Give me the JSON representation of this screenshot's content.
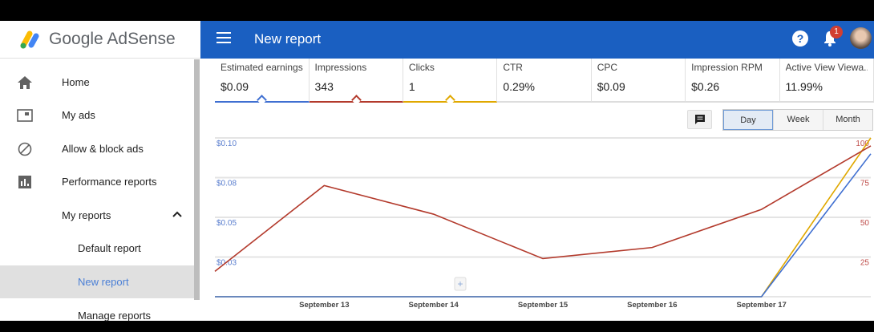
{
  "app": {
    "name": "Google AdSense"
  },
  "sidebar": {
    "items": [
      {
        "label": "Home",
        "icon": "home-icon"
      },
      {
        "label": "My ads",
        "icon": "ad-unit-icon"
      },
      {
        "label": "Allow & block ads",
        "icon": "block-icon"
      },
      {
        "label": "Performance reports",
        "icon": "bar-chart-icon"
      },
      {
        "label": "My reports",
        "icon": "chevron-up-icon"
      },
      {
        "label": "Default report"
      },
      {
        "label": "New report",
        "active": true
      },
      {
        "label": "Manage reports"
      }
    ]
  },
  "header": {
    "title": "New report",
    "help": "?",
    "notifications": "1"
  },
  "metrics": [
    {
      "name": "Estimated earnings",
      "value": "$0.09",
      "color": "#3f6fd1",
      "selected": true
    },
    {
      "name": "Impressions",
      "value": "343",
      "color": "#b33a2c",
      "selected": true
    },
    {
      "name": "Clicks",
      "value": "1",
      "color": "#e0a800",
      "selected": true
    },
    {
      "name": "CTR",
      "value": "0.29%"
    },
    {
      "name": "CPC",
      "value": "$0.09"
    },
    {
      "name": "Impression RPM",
      "value": "$0.26"
    },
    {
      "name": "Active View Viewa...",
      "value": "11.99%"
    }
  ],
  "period": {
    "options": [
      "Day",
      "Week",
      "Month"
    ],
    "selected": "Day"
  },
  "chart_data": {
    "type": "line",
    "categories": [
      "",
      "September 13",
      "September 14",
      "September 15",
      "September 16",
      "September 17",
      ""
    ],
    "left_axis": {
      "ticks": [
        "$0.10",
        "$0.08",
        "$0.05",
        "$0.03"
      ],
      "range": [
        0,
        0.1
      ],
      "color": "#5b7fcf"
    },
    "right_axis": {
      "ticks": [
        "100",
        "75",
        "50",
        "25"
      ],
      "range": [
        0,
        100
      ],
      "color": "#c0504d"
    },
    "grid": true,
    "series": [
      {
        "name": "Impressions",
        "axis": "right",
        "color": "#b33a2c",
        "values": [
          16,
          70,
          52,
          24,
          31,
          55,
          95
        ]
      },
      {
        "name": "Estimated earnings",
        "axis": "left",
        "color": "#3f6fd1",
        "values": [
          0,
          0,
          0,
          0,
          0,
          0,
          0.09
        ]
      },
      {
        "name": "Clicks",
        "axis": "clicks",
        "max": 1,
        "color": "#e0a800",
        "values": [
          0,
          0,
          0,
          0,
          0,
          0,
          1
        ]
      }
    ]
  }
}
